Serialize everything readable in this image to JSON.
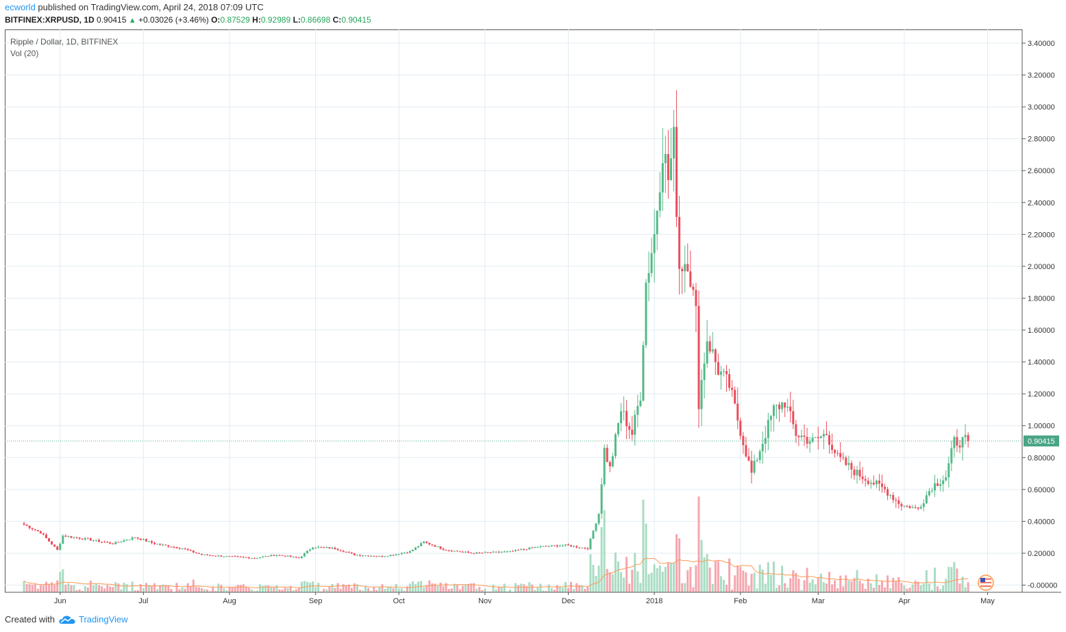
{
  "header": {
    "user": "ecworld",
    "published": " published on TradingView.com, April 24, 2018 07:09 UTC",
    "symbol": "BITFINEX:XRPUSD, 1D",
    "last": "0.90415",
    "arrow": "▲",
    "change": "+0.03026 (+3.46%)",
    "o_label": "O:",
    "o_value": "0.87529",
    "h_label": "H:",
    "h_value": "0.92989",
    "l_label": "L:",
    "l_value": "0.86698",
    "c_label": "C:",
    "c_value": "0.90415"
  },
  "legend": {
    "title": "Ripple / Dollar, 1D, BITFINEX",
    "volume": "Vol (20)"
  },
  "footer": {
    "created": "Created with",
    "brand": "TradingView"
  },
  "colors": {
    "up": "#53b987",
    "down": "#eb4d5c",
    "vol_up": "#a9dcc3",
    "vol_down": "#f5a6ae",
    "vol_ma": "#ff9850",
    "grid": "#e1ecf2",
    "last_price": "#4aa587"
  },
  "chart_data": {
    "type": "candlestick",
    "title": "Ripple / Dollar, 1D, BITFINEX",
    "ylim": [
      -0.05,
      3.45
    ],
    "y_ticks": [
      "3.40000",
      "3.20000",
      "3.00000",
      "2.80000",
      "2.60000",
      "2.40000",
      "2.20000",
      "2.00000",
      "1.80000",
      "1.60000",
      "1.40000",
      "1.20000",
      "1.00000",
      "0.80000",
      "0.60000",
      "0.40000",
      "0.20000",
      "-0.00000"
    ],
    "y_tick_values": [
      3.4,
      3.2,
      3.0,
      2.8,
      2.6,
      2.4,
      2.2,
      2.0,
      1.8,
      1.6,
      1.4,
      1.2,
      1.0,
      0.8,
      0.6,
      0.4,
      0.2,
      0.0
    ],
    "x_ticks": [
      {
        "label": "Jun",
        "date": "2017-06-01"
      },
      {
        "label": "Jul",
        "date": "2017-07-01"
      },
      {
        "label": "Aug",
        "date": "2017-08-01"
      },
      {
        "label": "Sep",
        "date": "2017-09-01"
      },
      {
        "label": "Oct",
        "date": "2017-10-01"
      },
      {
        "label": "Nov",
        "date": "2017-11-01"
      },
      {
        "label": "Dec",
        "date": "2017-12-01"
      },
      {
        "label": "2018",
        "date": "2018-01-01"
      },
      {
        "label": "Feb",
        "date": "2018-02-01"
      },
      {
        "label": "Mar",
        "date": "2018-03-01"
      },
      {
        "label": "Apr",
        "date": "2018-04-01"
      },
      {
        "label": "May",
        "date": "2018-05-01"
      }
    ],
    "x_range": [
      "2017-05-18",
      "2018-05-10"
    ],
    "last_price": "0.90415",
    "last_price_value": 0.90415,
    "close_series": [
      {
        "date": "2017-05-19",
        "close": 0.38
      },
      {
        "date": "2017-05-25",
        "close": 0.33
      },
      {
        "date": "2017-05-31",
        "close": 0.22
      },
      {
        "date": "2017-06-02",
        "close": 0.31
      },
      {
        "date": "2017-06-10",
        "close": 0.29
      },
      {
        "date": "2017-06-20",
        "close": 0.26
      },
      {
        "date": "2017-06-28",
        "close": 0.3
      },
      {
        "date": "2017-07-05",
        "close": 0.26
      },
      {
        "date": "2017-07-15",
        "close": 0.23
      },
      {
        "date": "2017-07-22",
        "close": 0.19
      },
      {
        "date": "2017-07-31",
        "close": 0.18
      },
      {
        "date": "2017-08-10",
        "close": 0.17
      },
      {
        "date": "2017-08-18",
        "close": 0.19
      },
      {
        "date": "2017-08-26",
        "close": 0.17
      },
      {
        "date": "2017-08-31",
        "close": 0.24
      },
      {
        "date": "2017-09-08",
        "close": 0.23
      },
      {
        "date": "2017-09-15",
        "close": 0.19
      },
      {
        "date": "2017-09-25",
        "close": 0.18
      },
      {
        "date": "2017-10-05",
        "close": 0.21
      },
      {
        "date": "2017-10-10",
        "close": 0.27
      },
      {
        "date": "2017-10-18",
        "close": 0.22
      },
      {
        "date": "2017-10-28",
        "close": 0.2
      },
      {
        "date": "2017-11-10",
        "close": 0.21
      },
      {
        "date": "2017-11-20",
        "close": 0.24
      },
      {
        "date": "2017-11-30",
        "close": 0.25
      },
      {
        "date": "2017-12-08",
        "close": 0.23
      },
      {
        "date": "2017-12-12",
        "close": 0.45
      },
      {
        "date": "2017-12-14",
        "close": 0.85
      },
      {
        "date": "2017-12-16",
        "close": 0.73
      },
      {
        "date": "2017-12-20",
        "close": 1.1
      },
      {
        "date": "2017-12-24",
        "close": 0.95
      },
      {
        "date": "2017-12-27",
        "close": 1.2
      },
      {
        "date": "2017-12-29",
        "close": 1.9
      },
      {
        "date": "2018-01-01",
        "close": 2.2
      },
      {
        "date": "2018-01-04",
        "close": 2.75
      },
      {
        "date": "2018-01-06",
        "close": 2.55
      },
      {
        "date": "2018-01-08",
        "close": 2.78
      },
      {
        "date": "2018-01-10",
        "close": 2.0
      },
      {
        "date": "2018-01-13",
        "close": 2.05
      },
      {
        "date": "2018-01-16",
        "close": 1.7
      },
      {
        "date": "2018-01-17",
        "close": 1.15
      },
      {
        "date": "2018-01-20",
        "close": 1.55
      },
      {
        "date": "2018-01-24",
        "close": 1.35
      },
      {
        "date": "2018-01-28",
        "close": 1.25
      },
      {
        "date": "2018-02-02",
        "close": 0.9
      },
      {
        "date": "2018-02-05",
        "close": 0.7
      },
      {
        "date": "2018-02-09",
        "close": 0.9
      },
      {
        "date": "2018-02-13",
        "close": 1.1
      },
      {
        "date": "2018-02-17",
        "close": 1.15
      },
      {
        "date": "2018-02-21",
        "close": 0.95
      },
      {
        "date": "2018-02-27",
        "close": 0.9
      },
      {
        "date": "2018-03-04",
        "close": 0.95
      },
      {
        "date": "2018-03-08",
        "close": 0.8
      },
      {
        "date": "2018-03-15",
        "close": 0.7
      },
      {
        "date": "2018-03-20",
        "close": 0.65
      },
      {
        "date": "2018-03-25",
        "close": 0.6
      },
      {
        "date": "2018-03-31",
        "close": 0.5
      },
      {
        "date": "2018-04-06",
        "close": 0.48
      },
      {
        "date": "2018-04-11",
        "close": 0.62
      },
      {
        "date": "2018-04-16",
        "close": 0.68
      },
      {
        "date": "2018-04-19",
        "close": 0.9
      },
      {
        "date": "2018-04-24",
        "close": 0.90415
      }
    ]
  }
}
